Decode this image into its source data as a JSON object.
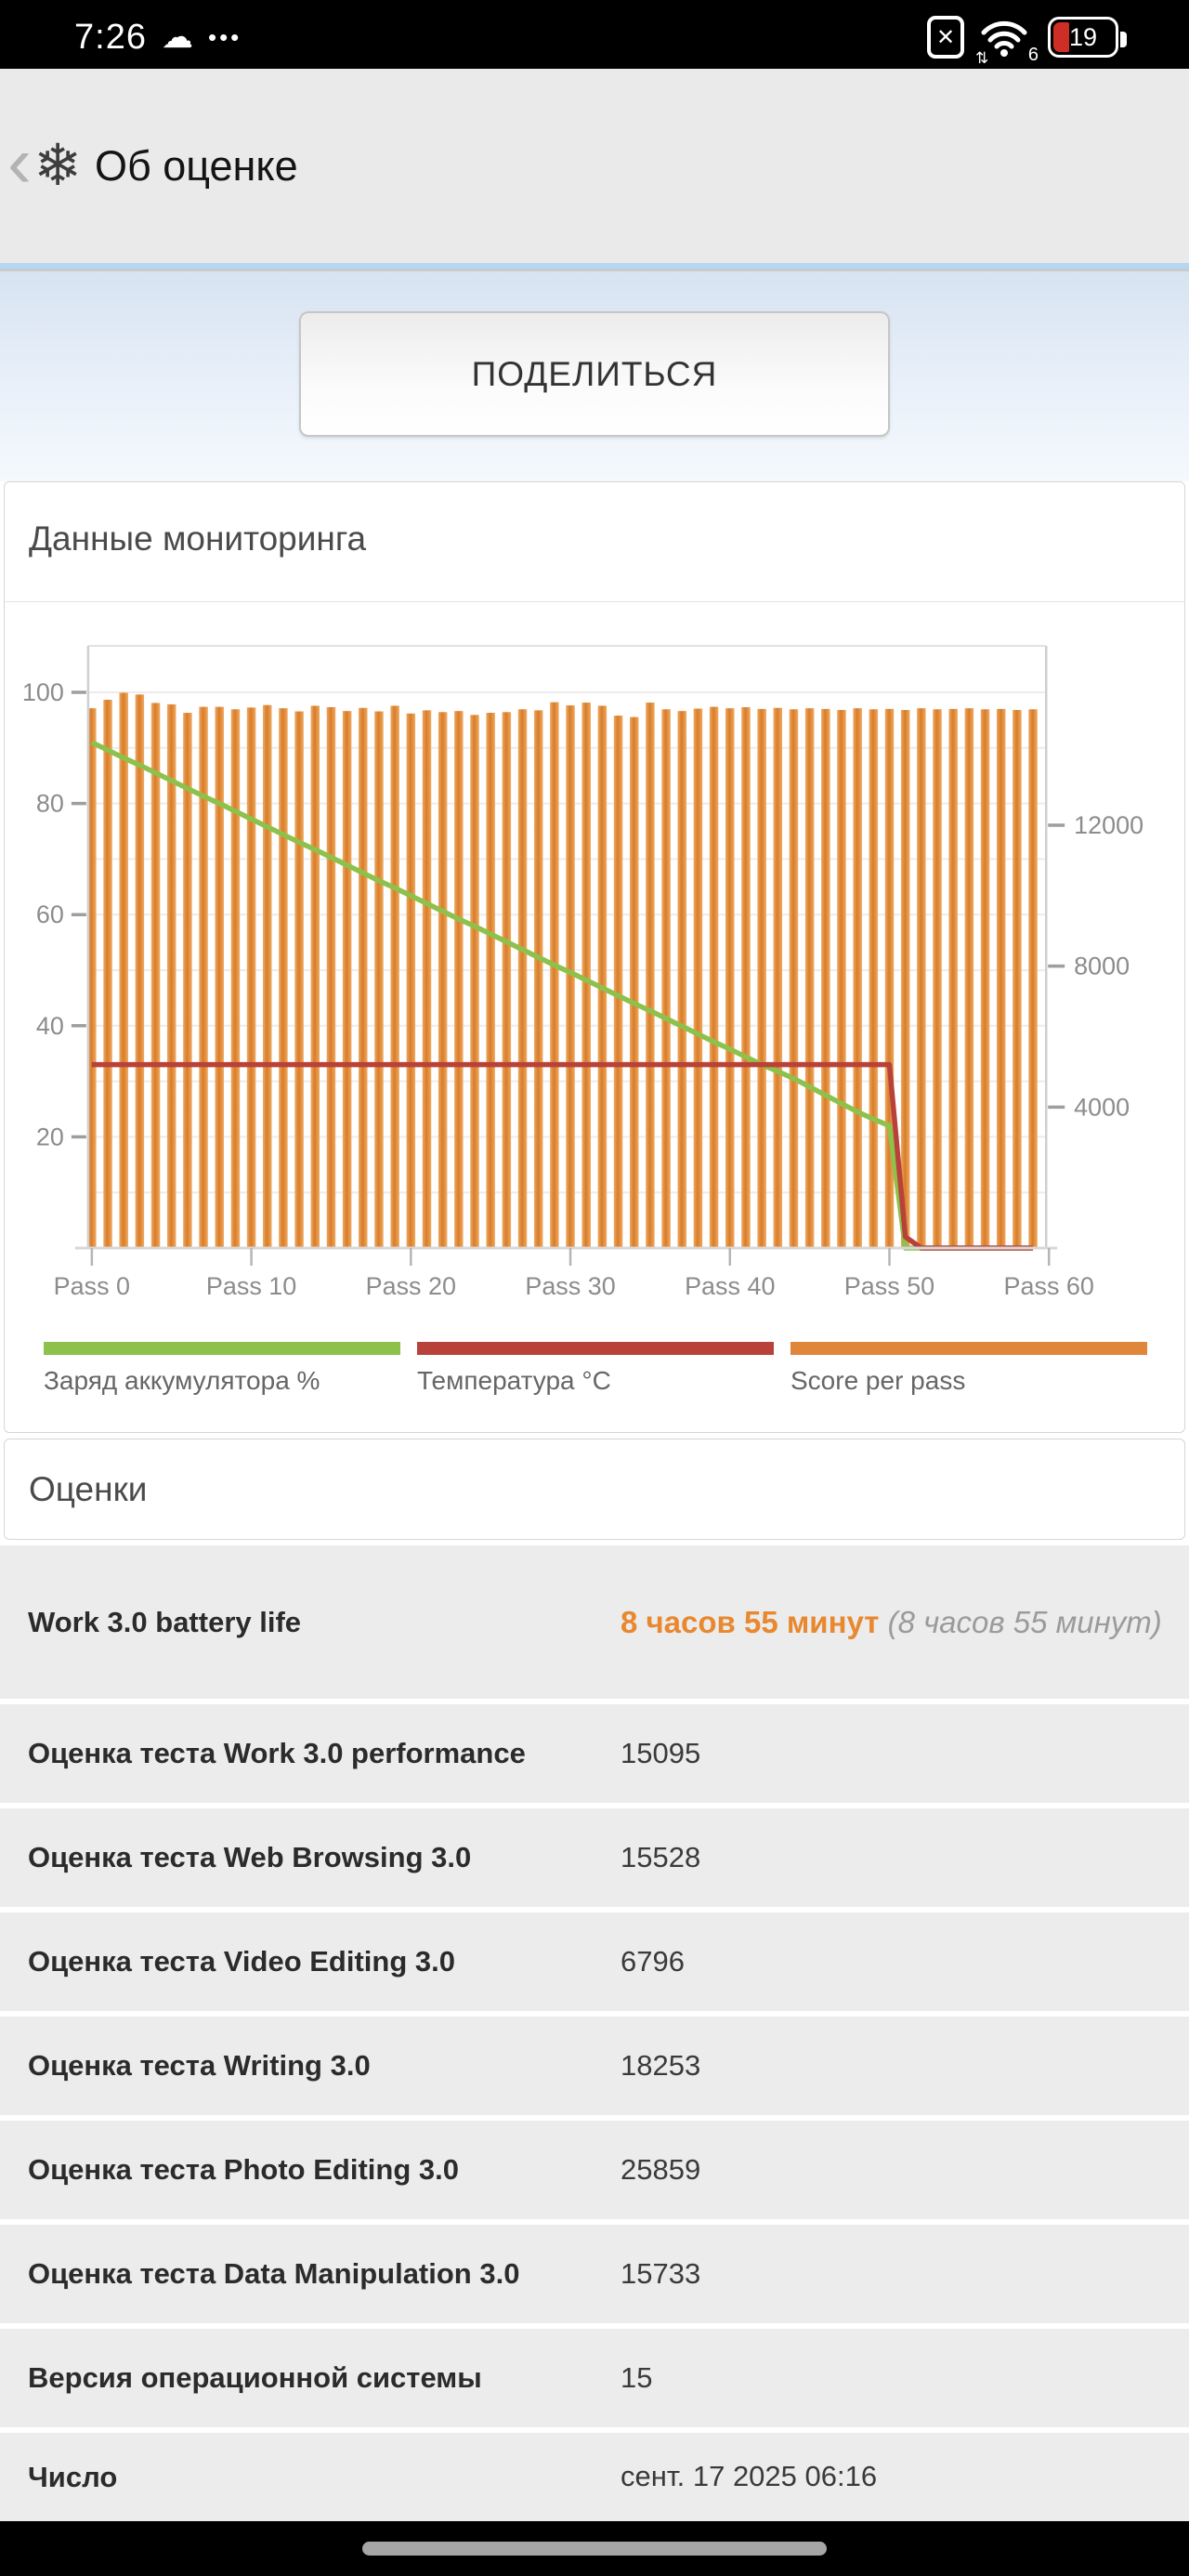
{
  "status_bar": {
    "time": "7:26",
    "dots": "•••",
    "wifi_number": "6",
    "battery_percent": "19"
  },
  "header": {
    "title": "Об оценке"
  },
  "hero": {
    "share_label": "ПОДЕЛИТЬСЯ"
  },
  "monitoring": {
    "title": "Данные мониторинга"
  },
  "chart_data": {
    "type": "bar",
    "title": "Данные мониторинга",
    "x_tick_labels": [
      "Pass 0",
      "Pass 10",
      "Pass 20",
      "Pass 30",
      "Pass 40",
      "Pass 50",
      "Pass 60"
    ],
    "left_axis": {
      "ticks": [
        20,
        40,
        60,
        80,
        100
      ],
      "range": [
        0,
        108
      ],
      "grid_step": 10
    },
    "right_axis": {
      "ticks": [
        4000,
        8000,
        12000
      ],
      "range": [
        0,
        17100
      ]
    },
    "grid": true,
    "legend_position": "bottom",
    "legend": [
      {
        "label": "Заряд аккумулятора %",
        "color": "#8dc14b"
      },
      {
        "label": "Температура °C",
        "color": "#b8423a"
      },
      {
        "label": "Score per pass",
        "color": "#e0863b"
      }
    ],
    "series": [
      {
        "name": "Заряд аккумулятора %",
        "type": "line",
        "axis": "left",
        "color": "#8dc14b",
        "values": [
          91,
          89.6,
          88.2,
          86.9,
          85.5,
          84.1,
          82.7,
          81.3,
          80,
          78.6,
          77.2,
          75.8,
          74.4,
          73,
          71.7,
          70.3,
          68.9,
          67.5,
          66.1,
          64.8,
          63.4,
          62,
          60.6,
          59.2,
          57.9,
          56.5,
          55.1,
          53.7,
          52.3,
          50.9,
          49.6,
          48.2,
          46.8,
          45.4,
          44,
          42.7,
          41.3,
          39.9,
          38.5,
          37.1,
          35.8,
          34.4,
          33,
          31.8,
          30.5,
          29,
          27.5,
          26,
          24.5,
          23.2,
          22,
          0,
          0,
          0,
          0,
          0,
          0,
          0,
          0,
          0
        ]
      },
      {
        "name": "Температура °C",
        "type": "line",
        "axis": "left",
        "color": "#b8423a",
        "values": [
          33,
          33,
          33,
          33,
          33,
          33,
          33,
          33,
          33,
          33,
          33,
          33,
          33,
          33,
          33,
          33,
          33,
          33,
          33,
          33,
          33,
          33,
          33,
          33,
          33,
          33,
          33,
          33,
          33,
          33,
          33,
          33,
          33,
          33,
          33,
          33,
          33,
          33,
          33,
          33,
          33,
          33,
          33,
          33,
          33,
          33,
          33,
          33,
          33,
          33,
          33,
          2,
          0,
          0,
          0,
          0,
          0,
          0,
          0,
          0
        ]
      },
      {
        "name": "Score per pass",
        "type": "bar",
        "axis": "right",
        "color": "#e0863b",
        "values": [
          15320,
          15560,
          15760,
          15710,
          15470,
          15430,
          15190,
          15360,
          15360,
          15290,
          15340,
          15410,
          15320,
          15230,
          15390,
          15350,
          15240,
          15330,
          15230,
          15390,
          15170,
          15260,
          15210,
          15240,
          15130,
          15190,
          15210,
          15290,
          15260,
          15490,
          15400,
          15480,
          15390,
          15110,
          15070,
          15480,
          15290,
          15240,
          15310,
          15360,
          15320,
          15350,
          15300,
          15330,
          15290,
          15320,
          15300,
          15270,
          15320,
          15290,
          15300,
          15270,
          15320,
          15290,
          15300,
          15320,
          15290,
          15300,
          15270,
          15290
        ]
      }
    ]
  },
  "scores": {
    "title": "Оценки",
    "rows": [
      {
        "label": "Work 3.0 battery life",
        "value": "8 часов 55 минут",
        "note": " (8 часов 55 минут)"
      },
      {
        "label": "Оценка теста Work 3.0 performance",
        "value": "15095",
        "note": ""
      },
      {
        "label": "Оценка теста Web Browsing 3.0",
        "value": "15528",
        "note": ""
      },
      {
        "label": "Оценка теста Video Editing 3.0",
        "value": "6796",
        "note": ""
      },
      {
        "label": "Оценка теста Writing 3.0",
        "value": "18253",
        "note": ""
      },
      {
        "label": "Оценка теста Photo Editing 3.0",
        "value": "25859",
        "note": ""
      },
      {
        "label": "Оценка теста Data Manipulation 3.0",
        "value": "15733",
        "note": ""
      },
      {
        "label": "Версия операционной системы",
        "value": "15",
        "note": ""
      },
      {
        "label": "Число",
        "value": "сент. 17 2025 06:16",
        "note": ""
      }
    ]
  },
  "colors": {
    "accent_orange": "#e8882f",
    "bar_fill": "#e0863b",
    "battery_line": "#8dc14b",
    "temperature_line": "#b8423a",
    "status_battery_fill": "#cf2e26"
  }
}
